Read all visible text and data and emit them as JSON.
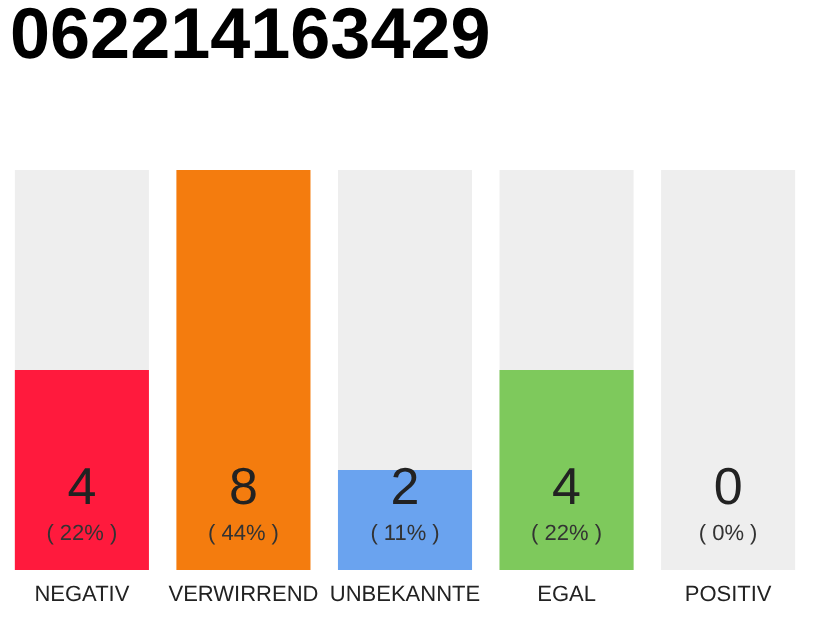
{
  "chart_data": {
    "type": "bar",
    "title": "062214163429",
    "categories": [
      "NEGATIV",
      "VERWIRREND",
      "UNBEKANNTE",
      "EGAL",
      "POSITIV"
    ],
    "values": [
      4,
      8,
      2,
      4,
      0
    ],
    "colors": [
      "#ff1a3d",
      "#f47c0e",
      "#6aa3ef",
      "#7ec95c",
      "#cccccc"
    ],
    "ylim": [
      0,
      8
    ],
    "data_labels": true,
    "grid": false,
    "tick_labels": "x",
    "bands": [
      {
        "axis": "x",
        "from": "NEGATIV",
        "to": "NEGATIV",
        "color": "#eeeeee"
      },
      {
        "axis": "x",
        "from": "UNBEKANNTE",
        "to": "UNBEKANNTE",
        "color": "#eeeeee"
      },
      {
        "axis": "x",
        "from": "EGAL",
        "to": "EGAL",
        "color": "#eeeeee"
      },
      {
        "axis": "x",
        "from": "POSITIV",
        "to": "POSITIV",
        "color": "#eeeeee"
      }
    ],
    "annotations": [
      "( 22% )",
      "( 44% )",
      "( 11% )",
      "( 22% )",
      "( 0% )"
    ]
  }
}
